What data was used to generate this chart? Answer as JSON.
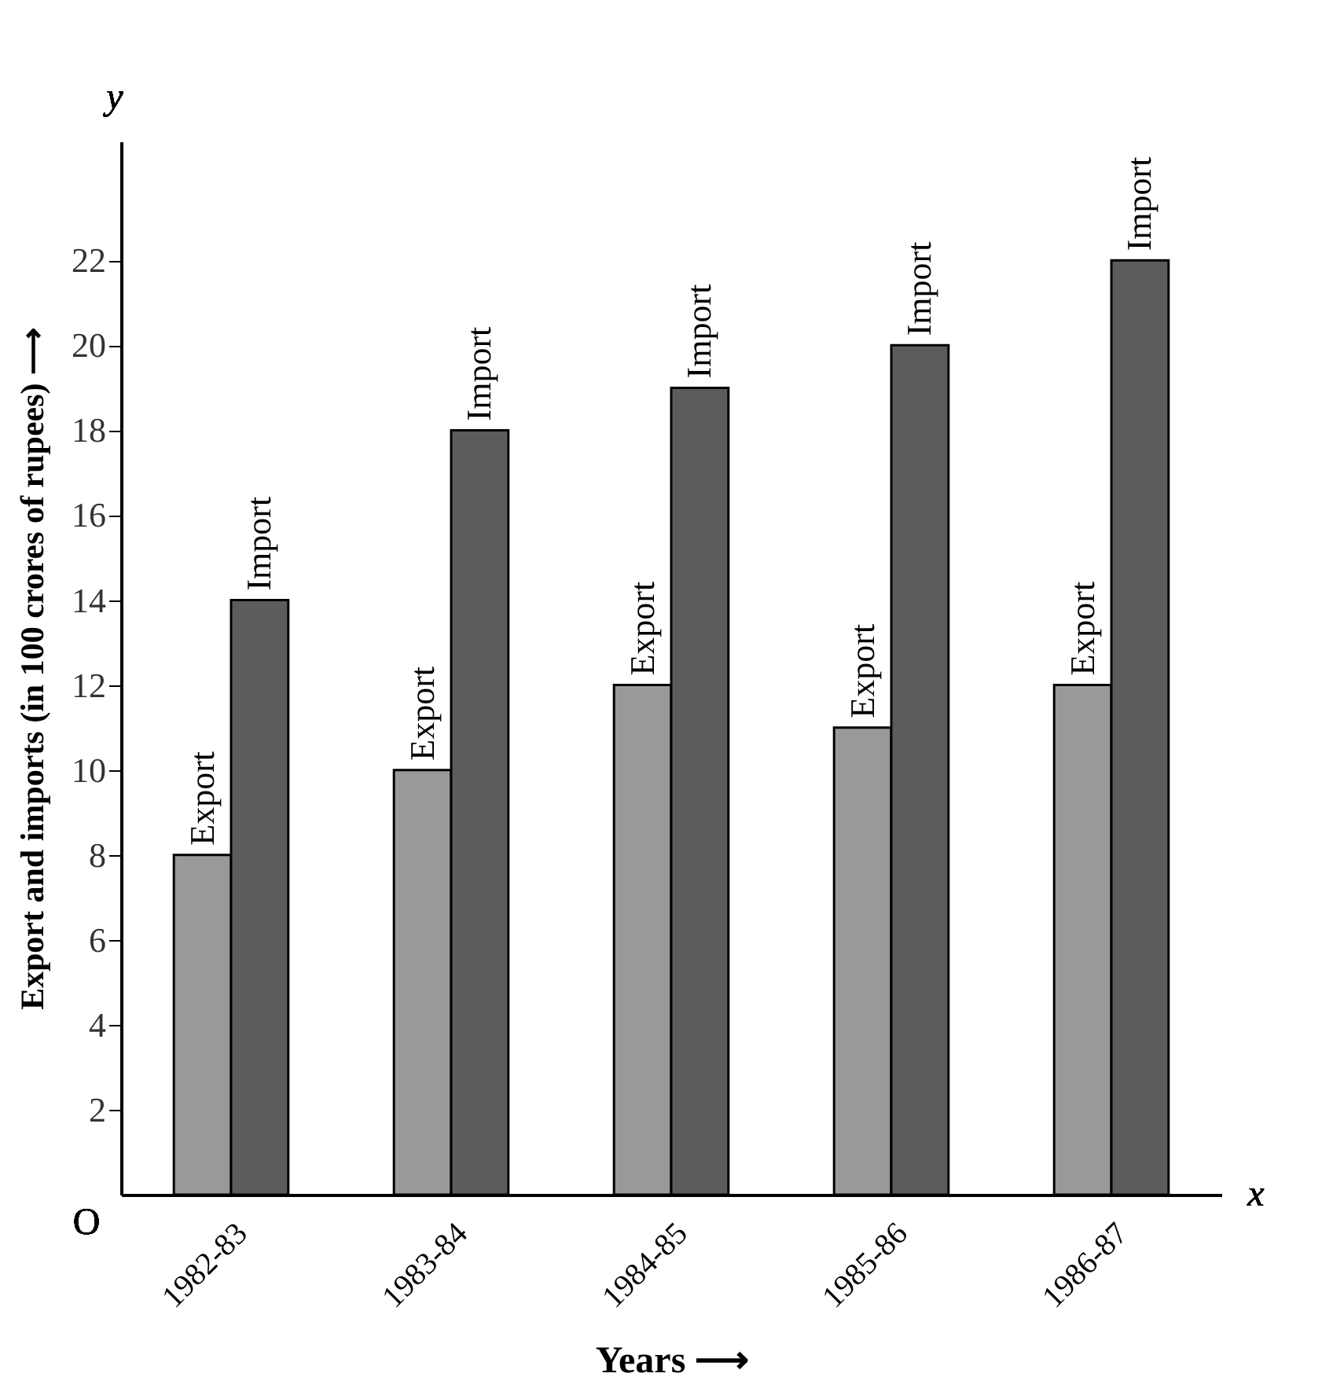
{
  "chart_data": {
    "type": "bar",
    "xlabel": "Years ⟶",
    "ylabel": "Export and imports (in 100 crores of rupees) ⟶",
    "categories": [
      "1982-83",
      "1983-84",
      "1984-85",
      "1985-86",
      "1986-87"
    ],
    "series": [
      {
        "name": "Export",
        "color": "#999999",
        "values": [
          8,
          10,
          12,
          11,
          12
        ]
      },
      {
        "name": "Import",
        "color": "#5c5c5c",
        "values": [
          14,
          18,
          19,
          20,
          22
        ]
      }
    ],
    "ylim": [
      0,
      24.8
    ],
    "yticks": [
      2,
      4,
      6,
      8,
      10,
      12,
      14,
      16,
      18,
      20,
      22
    ],
    "annotations": [
      "O",
      "x",
      "y"
    ],
    "grid": false,
    "legend": false
  }
}
